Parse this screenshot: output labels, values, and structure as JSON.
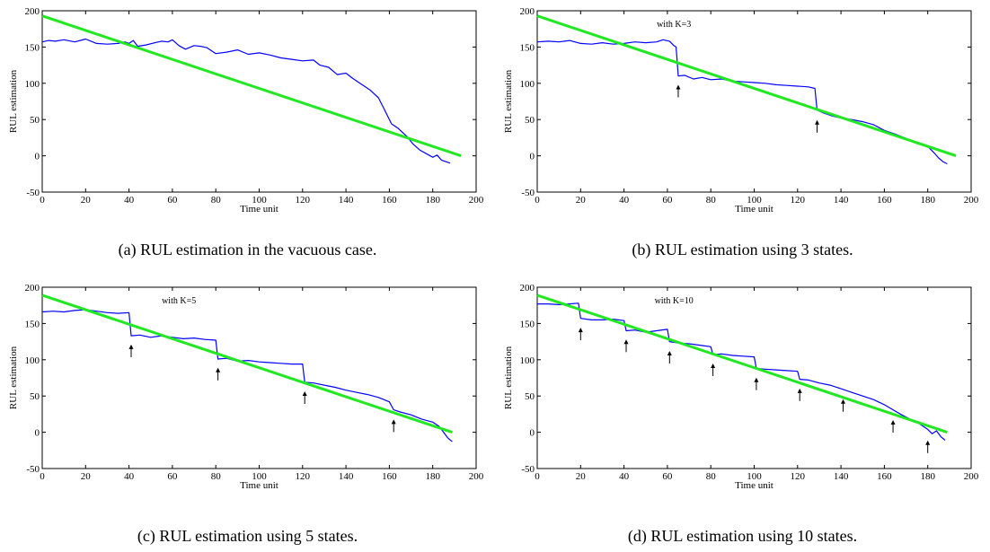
{
  "chart_data": [
    {
      "type": "line",
      "caption": "(a) RUL estimation in the vacuous case.",
      "annotation": "",
      "xlabel": "Time unit",
      "ylabel": "RUL estimation",
      "xlim": [
        0,
        200
      ],
      "ylim": [
        -50,
        200
      ],
      "xticks": [
        0,
        20,
        40,
        60,
        80,
        100,
        120,
        140,
        160,
        180,
        200
      ],
      "yticks": [
        -50,
        0,
        50,
        100,
        150,
        200
      ],
      "series": [
        {
          "color": "#0000ff",
          "width": 1.2,
          "points": [
            [
              0,
              157
            ],
            [
              3,
              159
            ],
            [
              6,
              158
            ],
            [
              10,
              160
            ],
            [
              15,
              157
            ],
            [
              20,
              161
            ],
            [
              25,
              155
            ],
            [
              30,
              154
            ],
            [
              35,
              155
            ],
            [
              38,
              157
            ],
            [
              40,
              155
            ],
            [
              42,
              159
            ],
            [
              44,
              151
            ],
            [
              48,
              153
            ],
            [
              52,
              156
            ],
            [
              55,
              158
            ],
            [
              58,
              157
            ],
            [
              60,
              160
            ],
            [
              63,
              152
            ],
            [
              66,
              147
            ],
            [
              70,
              152
            ],
            [
              73,
              151
            ],
            [
              76,
              149
            ],
            [
              80,
              141
            ],
            [
              85,
              143
            ],
            [
              90,
              146
            ],
            [
              95,
              140
            ],
            [
              100,
              142
            ],
            [
              105,
              139
            ],
            [
              110,
              135
            ],
            [
              115,
              133
            ],
            [
              120,
              131
            ],
            [
              125,
              132
            ],
            [
              128,
              125
            ],
            [
              132,
              122
            ],
            [
              136,
              112
            ],
            [
              140,
              114
            ],
            [
              143,
              107
            ],
            [
              147,
              99
            ],
            [
              151,
              91
            ],
            [
              155,
              80
            ],
            [
              158,
              62
            ],
            [
              161,
              44
            ],
            [
              164,
              38
            ],
            [
              168,
              27
            ],
            [
              171,
              16
            ],
            [
              174,
              8
            ],
            [
              177,
              3
            ],
            [
              180,
              -2
            ],
            [
              182,
              1
            ],
            [
              184,
              -6
            ],
            [
              186,
              -8
            ],
            [
              188,
              -10
            ]
          ]
        },
        {
          "color": "#22e822",
          "width": 3,
          "points": [
            [
              0,
              193
            ],
            [
              193,
              0
            ]
          ]
        }
      ],
      "arrows_x": []
    },
    {
      "type": "line",
      "caption": "(b) RUL estimation using 3 states.",
      "annotation": "with K=3",
      "xlabel": "Time unit",
      "ylabel": "RUL estimation",
      "xlim": [
        0,
        200
      ],
      "ylim": [
        -50,
        200
      ],
      "xticks": [
        0,
        20,
        40,
        60,
        80,
        100,
        120,
        140,
        160,
        180,
        200
      ],
      "yticks": [
        -50,
        0,
        50,
        100,
        150,
        200
      ],
      "series": [
        {
          "color": "#0000ff",
          "width": 1.2,
          "points": [
            [
              0,
              157
            ],
            [
              5,
              158
            ],
            [
              10,
              157
            ],
            [
              15,
              159
            ],
            [
              20,
              155
            ],
            [
              25,
              154
            ],
            [
              30,
              156
            ],
            [
              35,
              154
            ],
            [
              40,
              155
            ],
            [
              45,
              157
            ],
            [
              50,
              156
            ],
            [
              55,
              157
            ],
            [
              58,
              160
            ],
            [
              61,
              158
            ],
            [
              63,
              152
            ],
            [
              64,
              150
            ],
            [
              65,
              110
            ],
            [
              68,
              111
            ],
            [
              72,
              106
            ],
            [
              76,
              108
            ],
            [
              80,
              105
            ],
            [
              85,
              106
            ],
            [
              90,
              103
            ],
            [
              95,
              102
            ],
            [
              100,
              101
            ],
            [
              105,
              100
            ],
            [
              110,
              98
            ],
            [
              115,
              97
            ],
            [
              120,
              96
            ],
            [
              125,
              95
            ],
            [
              128,
              93
            ],
            [
              129,
              63
            ],
            [
              132,
              59
            ],
            [
              136,
              55
            ],
            [
              140,
              52
            ],
            [
              145,
              50
            ],
            [
              150,
              47
            ],
            [
              155,
              43
            ],
            [
              160,
              35
            ],
            [
              165,
              30
            ],
            [
              170,
              24
            ],
            [
              175,
              18
            ],
            [
              180,
              13
            ],
            [
              183,
              4
            ],
            [
              185,
              -3
            ],
            [
              187,
              -8
            ],
            [
              189,
              -11
            ]
          ]
        },
        {
          "color": "#22e822",
          "width": 3,
          "points": [
            [
              0,
              193
            ],
            [
              193,
              0
            ]
          ]
        }
      ],
      "arrows_x": [
        65,
        129
      ]
    },
    {
      "type": "line",
      "caption": "(c) RUL estimation using 5 states.",
      "annotation": "with K=5",
      "xlabel": "Time unit",
      "ylabel": "RUL estimation",
      "xlim": [
        0,
        200
      ],
      "ylim": [
        -50,
        200
      ],
      "xticks": [
        0,
        20,
        40,
        60,
        80,
        100,
        120,
        140,
        160,
        180,
        200
      ],
      "yticks": [
        -50,
        0,
        50,
        100,
        150,
        200
      ],
      "series": [
        {
          "color": "#0000ff",
          "width": 1.2,
          "points": [
            [
              0,
              166
            ],
            [
              5,
              167
            ],
            [
              10,
              166
            ],
            [
              15,
              168
            ],
            [
              20,
              169
            ],
            [
              25,
              167
            ],
            [
              30,
              165
            ],
            [
              35,
              164
            ],
            [
              40,
              165
            ],
            [
              41,
              133
            ],
            [
              45,
              134
            ],
            [
              50,
              131
            ],
            [
              55,
              133
            ],
            [
              60,
              131
            ],
            [
              65,
              129
            ],
            [
              70,
              130
            ],
            [
              75,
              128
            ],
            [
              80,
              127
            ],
            [
              81,
              101
            ],
            [
              85,
              102
            ],
            [
              90,
              98
            ],
            [
              95,
              99
            ],
            [
              100,
              97
            ],
            [
              105,
              96
            ],
            [
              110,
              95
            ],
            [
              115,
              94
            ],
            [
              120,
              94
            ],
            [
              121,
              69
            ],
            [
              125,
              68
            ],
            [
              130,
              65
            ],
            [
              135,
              62
            ],
            [
              140,
              58
            ],
            [
              145,
              55
            ],
            [
              150,
              52
            ],
            [
              155,
              48
            ],
            [
              160,
              42
            ],
            [
              162,
              31
            ],
            [
              165,
              28
            ],
            [
              170,
              24
            ],
            [
              175,
              18
            ],
            [
              180,
              14
            ],
            [
              183,
              8
            ],
            [
              185,
              0
            ],
            [
              187,
              -8
            ],
            [
              189,
              -13
            ]
          ]
        },
        {
          "color": "#22e822",
          "width": 3,
          "points": [
            [
              0,
              189
            ],
            [
              189,
              0
            ]
          ]
        }
      ],
      "arrows_x": [
        41,
        81,
        121,
        162
      ]
    },
    {
      "type": "line",
      "caption": "(d) RUL estimation using 10 states.",
      "annotation": "with K=10",
      "xlabel": "Time unit",
      "ylabel": "RUL estimation",
      "xlim": [
        0,
        200
      ],
      "ylim": [
        -50,
        200
      ],
      "xticks": [
        0,
        20,
        40,
        60,
        80,
        100,
        120,
        140,
        160,
        180,
        200
      ],
      "yticks": [
        -50,
        0,
        50,
        100,
        150,
        200
      ],
      "series": [
        {
          "color": "#0000ff",
          "width": 1.2,
          "points": [
            [
              0,
              177
            ],
            [
              5,
              177
            ],
            [
              10,
              176
            ],
            [
              15,
              177
            ],
            [
              19,
              178
            ],
            [
              20,
              157
            ],
            [
              25,
              155
            ],
            [
              30,
              155
            ],
            [
              35,
              156
            ],
            [
              40,
              154
            ],
            [
              41,
              140
            ],
            [
              45,
              141
            ],
            [
              50,
              138
            ],
            [
              55,
              140
            ],
            [
              60,
              142
            ],
            [
              61,
              125
            ],
            [
              65,
              123
            ],
            [
              70,
              122
            ],
            [
              75,
              120
            ],
            [
              80,
              118
            ],
            [
              81,
              107
            ],
            [
              85,
              108
            ],
            [
              90,
              106
            ],
            [
              95,
              105
            ],
            [
              100,
              104
            ],
            [
              101,
              88
            ],
            [
              105,
              87
            ],
            [
              110,
              86
            ],
            [
              115,
              85
            ],
            [
              120,
              84
            ],
            [
              121,
              73
            ],
            [
              125,
              72
            ],
            [
              130,
              68
            ],
            [
              135,
              65
            ],
            [
              140,
              60
            ],
            [
              145,
              55
            ],
            [
              150,
              50
            ],
            [
              155,
              45
            ],
            [
              160,
              38
            ],
            [
              164,
              31
            ],
            [
              168,
              24
            ],
            [
              172,
              18
            ],
            [
              176,
              12
            ],
            [
              180,
              4
            ],
            [
              182,
              -2
            ],
            [
              184,
              2
            ],
            [
              186,
              -6
            ],
            [
              188,
              -11
            ]
          ]
        },
        {
          "color": "#22e822",
          "width": 3,
          "points": [
            [
              0,
              189
            ],
            [
              189,
              0
            ]
          ]
        }
      ],
      "arrows_x": [
        20,
        41,
        61,
        81,
        101,
        121,
        141,
        164,
        180
      ]
    }
  ]
}
